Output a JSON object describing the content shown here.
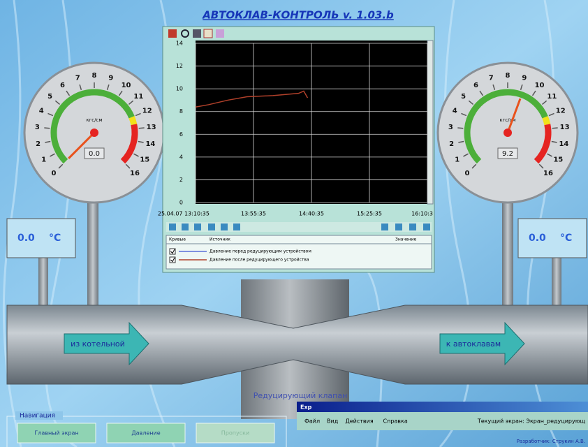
{
  "title": "АВТОКЛАВ-КОНТРОЛЬ v. 1.03.b",
  "gauges": [
    {
      "unit": "кгс/см",
      "value": 0,
      "value_label": "0.0",
      "lim": [
        0,
        16
      ],
      "ticks": [
        0,
        1,
        2,
        3,
        4,
        5,
        6,
        7,
        8,
        9,
        10,
        11,
        12,
        13,
        14,
        15,
        16
      ]
    },
    {
      "unit": "кгс/см",
      "value": 9.2,
      "value_label": "9.2",
      "lim": [
        0,
        16
      ],
      "ticks": [
        0,
        1,
        2,
        3,
        4,
        5,
        6,
        7,
        8,
        9,
        10,
        11,
        12,
        13,
        14,
        15,
        16
      ]
    }
  ],
  "temperatures": [
    {
      "value_label": "0.0",
      "unit": "°C"
    },
    {
      "value_label": "0.0",
      "unit": "°C"
    }
  ],
  "pipe": {
    "inlet": "из котельной",
    "outlet": "к автоклавам",
    "valve": "Редуцирующий клапан"
  },
  "chart_data": {
    "type": "line",
    "ylim": [
      0,
      14
    ],
    "yticks": [
      0,
      2,
      4,
      6,
      8,
      10,
      12,
      14
    ],
    "xlim": [
      0,
      180
    ],
    "xticks": [
      {
        "value": 0,
        "label": "25.04.07 13:10:35"
      },
      {
        "value": 45,
        "label": "13:55:35"
      },
      {
        "value": 90,
        "label": "14:40:35"
      },
      {
        "value": 135,
        "label": "15:25:35"
      },
      {
        "value": 180,
        "label": "16:10:3"
      }
    ],
    "grid": true,
    "legend_headers": [
      "Кривые",
      "Источник",
      "Значение"
    ],
    "series": [
      {
        "name": "Давление перед редуцирующим устройством",
        "color": "#5a6fd8",
        "x": [],
        "values": []
      },
      {
        "name": "Давление после редуцирующего устройства",
        "color": "#b0402a",
        "x": [
          0,
          10,
          25,
          40,
          60,
          80,
          84,
          87
        ],
        "values": [
          8.4,
          8.6,
          9.0,
          9.3,
          9.4,
          9.6,
          9.8,
          9.2
        ]
      }
    ]
  },
  "navigation": {
    "label": "Навигация",
    "buttons": [
      "Главный экран",
      "Давление",
      "Пропуски"
    ]
  },
  "window": {
    "title": "Exp",
    "menu": [
      "Файл",
      "Вид",
      "Действия",
      "Справка"
    ],
    "status": "Текущий экран: Экран_редуцирующ",
    "footer": "Разработчик: Струкин А.В."
  }
}
